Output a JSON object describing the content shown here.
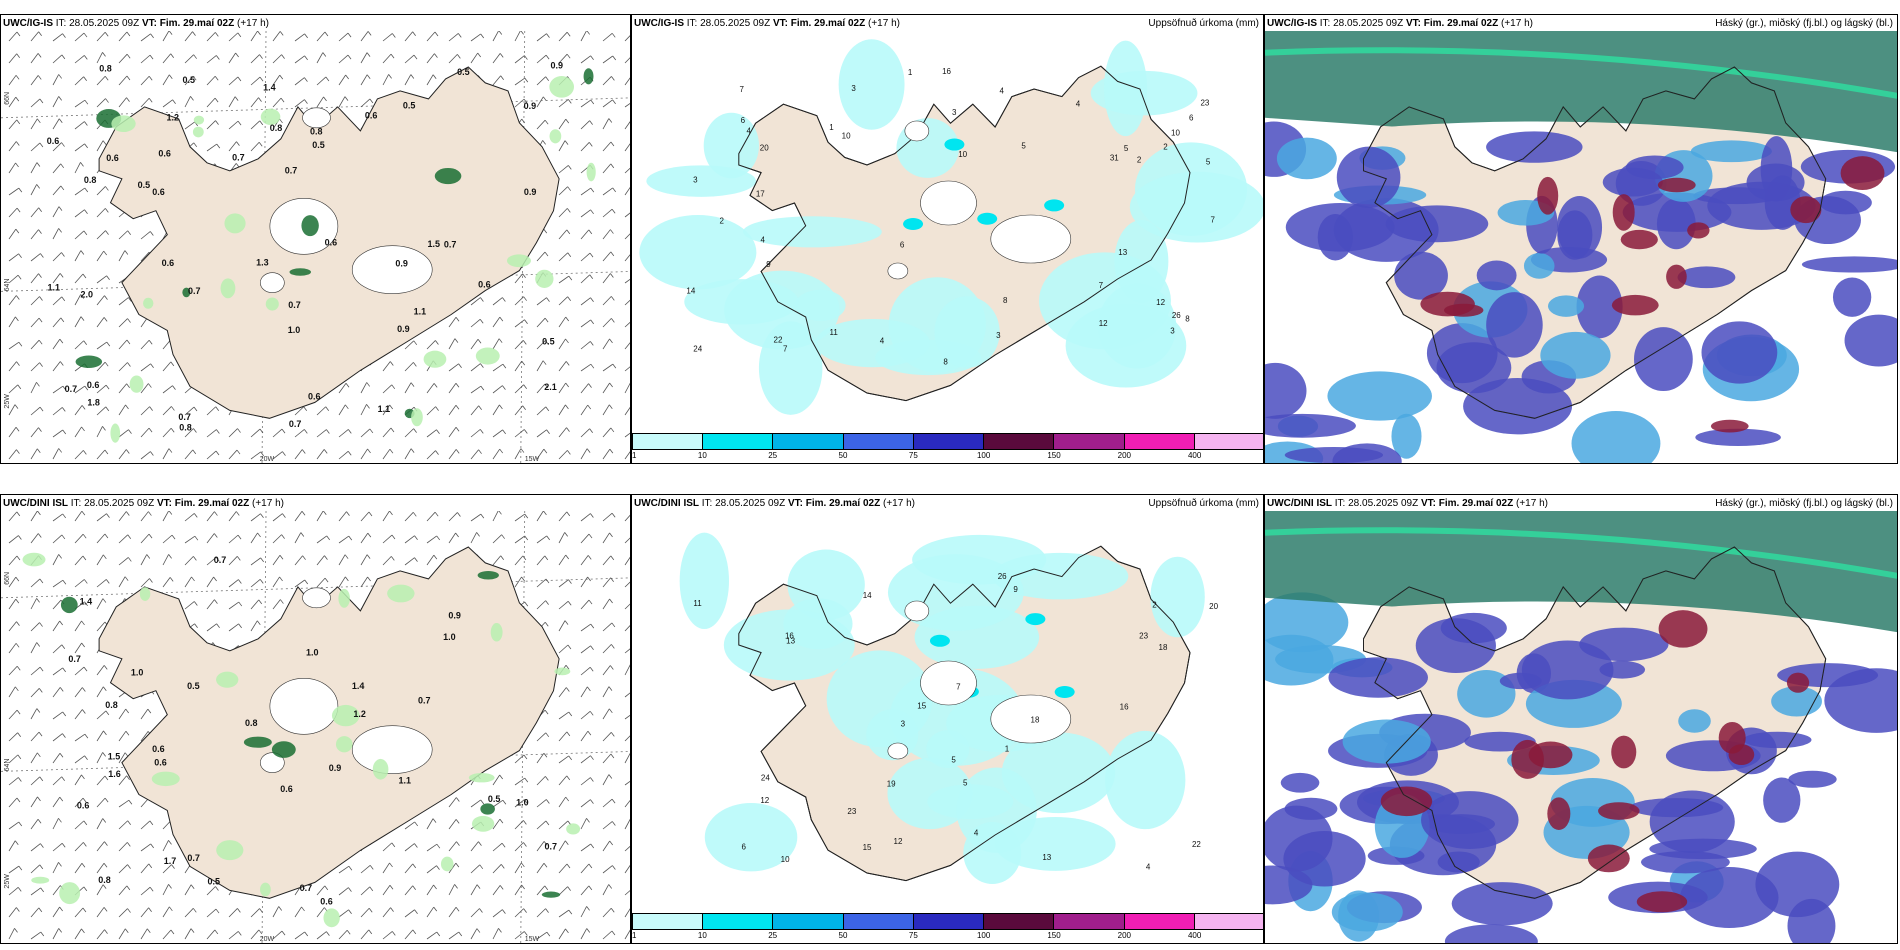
{
  "rows": [
    {
      "panels": [
        {
          "title_model": "UWC/IG-IS",
          "title_it": "IT: 28.05.2025 09Z",
          "title_vt": "VT: Fim. 29.maí 02Z",
          "title_lead": "(+17 h)",
          "right": ""
        },
        {
          "title_model": "UWC/IG-IS",
          "title_it": "IT: 28.05.2025 09Z",
          "title_vt": "VT: Fim. 29.maí 02Z",
          "title_lead": "(+17 h)",
          "right": "Uppsöfnuð úrkoma (mm)"
        },
        {
          "title_model": "UWC/IG-IS",
          "title_it": "IT: 28.05.2025 09Z",
          "title_vt": "VT: Fim. 29.maí 02Z",
          "title_lead": "(+17 h)",
          "right": "Háský (gr.), miðský (fj.bl.) og lágský (bl.)"
        }
      ]
    },
    {
      "panels": [
        {
          "title_model": "UWC/DINI ISL",
          "title_it": "IT: 28.05.2025 09Z",
          "title_vt": "VT: Fim. 29.maí 02Z",
          "title_lead": "(+17 h)",
          "right": ""
        },
        {
          "title_model": "UWC/DINI ISL",
          "title_it": "IT: 28.05.2025 09Z",
          "title_vt": "VT: Fim. 29.maí 02Z",
          "title_lead": "(+17 h)",
          "right": "Uppsöfnuð úrkoma (mm)"
        },
        {
          "title_model": "UWC/DINI ISL",
          "title_it": "IT: 28.05.2025 09Z",
          "title_vt": "VT: Fim. 29.maí 02Z",
          "title_lead": "(+17 h)",
          "right": "Háský (gr.), miðský (fj.bl.) og lágský (bl.)"
        }
      ]
    }
  ],
  "axis_labels": {
    "lat1": "66N",
    "lat2": "64N",
    "lat3": "25W",
    "lon1": "20W",
    "lon2": "15W"
  },
  "colorbar": {
    "ticks": [
      "1",
      "10",
      "25",
      "50",
      "75",
      "100",
      "150",
      "200",
      "400"
    ],
    "colors": [
      "#c8fbfb",
      "#00e5f0",
      "#00b4e8",
      "#3c64e6",
      "#2a2ac0",
      "#5a0a3c",
      "#a01e8c",
      "#f01eb4",
      "#f5b4f0"
    ]
  },
  "colors": {
    "land": "#f1e4d6",
    "wind_green_light": "#b8f0b0",
    "wind_green_dark": "#1a6e32",
    "precip_light": "#b8fafa",
    "cloud_low": "#4a4cc0",
    "cloud_mid": "#4aa8e0",
    "cloud_high": "#2e7d6b",
    "cloud_red": "#8a1a3a"
  },
  "top_left_values": [
    "0.8",
    "0.5",
    "0.7",
    "0.5",
    "0.8",
    "0.7",
    "0.6",
    "0.5",
    "0.7",
    "0.6",
    "0.9",
    "0.6",
    "0.7",
    "0.6",
    "0.6",
    "0.7",
    "0.8",
    "1.0",
    "0.8",
    "0.7",
    "0.9",
    "1.1",
    "0.7",
    "0.9",
    "0.9",
    "0.5",
    "0.6",
    "0.6",
    "0.5",
    "0.6",
    "0.9",
    "1.3",
    "1.2",
    "0.7",
    "0.8",
    "1.1",
    "2.0",
    "0.6",
    "1.1",
    "0.6",
    "0.5",
    "1.5",
    "2.1",
    "1.4",
    "1.8"
  ],
  "top_mid_values": [
    "1",
    "3",
    "3",
    "2",
    "9",
    "7",
    "5",
    "6",
    "10",
    "14",
    "11",
    "13",
    "23",
    "8",
    "7",
    "24",
    "26",
    "20",
    "10",
    "12",
    "5",
    "7",
    "4",
    "12",
    "17",
    "31",
    "10",
    "8",
    "6",
    "4",
    "3",
    "2",
    "16",
    "22",
    "8",
    "4",
    "1",
    "2",
    "3",
    "4",
    "5",
    "6",
    "4",
    "3",
    "7"
  ],
  "bottom_left_values": [
    "1.0",
    "0.7",
    "0.6",
    "1.0",
    "0.7",
    "0.5",
    "0.6",
    "1.5",
    "1.4",
    "1.0",
    "0.9",
    "0.7",
    "0.8",
    "0.7",
    "0.5",
    "0.6",
    "1.1",
    "0.6",
    "0.6",
    "0.7",
    "1.0",
    "0.8",
    "0.9",
    "0.5",
    "0.8",
    "1.6",
    "1.7",
    "1.4",
    "0.7",
    "1.2"
  ],
  "bottom_mid_values": [
    "4",
    "12",
    "13",
    "18",
    "15",
    "19",
    "20",
    "23",
    "14",
    "16",
    "11",
    "12",
    "9",
    "10",
    "18",
    "26",
    "13",
    "24",
    "15",
    "16",
    "7",
    "5",
    "22",
    "23",
    "6",
    "3",
    "2",
    "1",
    "5",
    "4"
  ]
}
